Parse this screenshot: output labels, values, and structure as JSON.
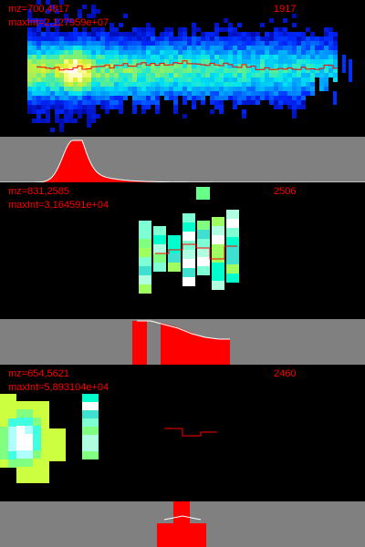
{
  "label_color": "#ff0000",
  "trace_color": "#ff0000",
  "strip_fill_color": "#ff0000",
  "strip_line_color": "#ffffff",
  "strip_background": "#808080",
  "panels": [
    {
      "mz_text": "mz=700,4817",
      "maxint_text": "maxInt=2,127959e+07",
      "count_text": "1917"
    },
    {
      "mz_text": "mz=831,2585",
      "maxint_text": "maxInt=3,164591e+04",
      "count_text": "2506"
    },
    {
      "mz_text": "mz=654,5621",
      "maxint_text": "maxInt=5,893104e+04",
      "count_text": "2460"
    }
  ]
}
